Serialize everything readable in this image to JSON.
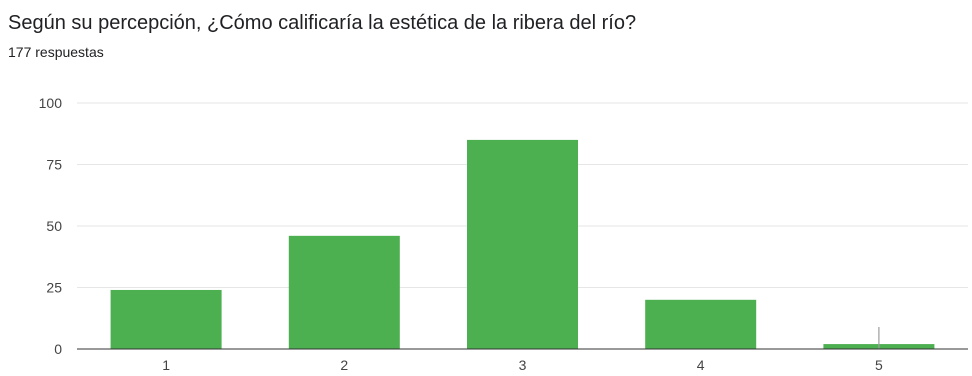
{
  "title": "Según su percepción, ¿Cómo calificaría la estética de la ribera del río?",
  "response_count": "177 respuestas",
  "colors": {
    "bar": "#4caf50",
    "grid": "#e6e6e6",
    "axis": "#333333",
    "error_bar": "#9e9e9e"
  },
  "chart_data": {
    "type": "bar",
    "title": "",
    "xlabel": "",
    "ylabel": "",
    "categories": [
      "1",
      "2",
      "3",
      "4",
      "5"
    ],
    "values": [
      24,
      46,
      85,
      20,
      2
    ],
    "ylim": [
      0,
      100
    ],
    "yticks": [
      0,
      25,
      50,
      75,
      100
    ],
    "grid": true,
    "legend": "none"
  }
}
